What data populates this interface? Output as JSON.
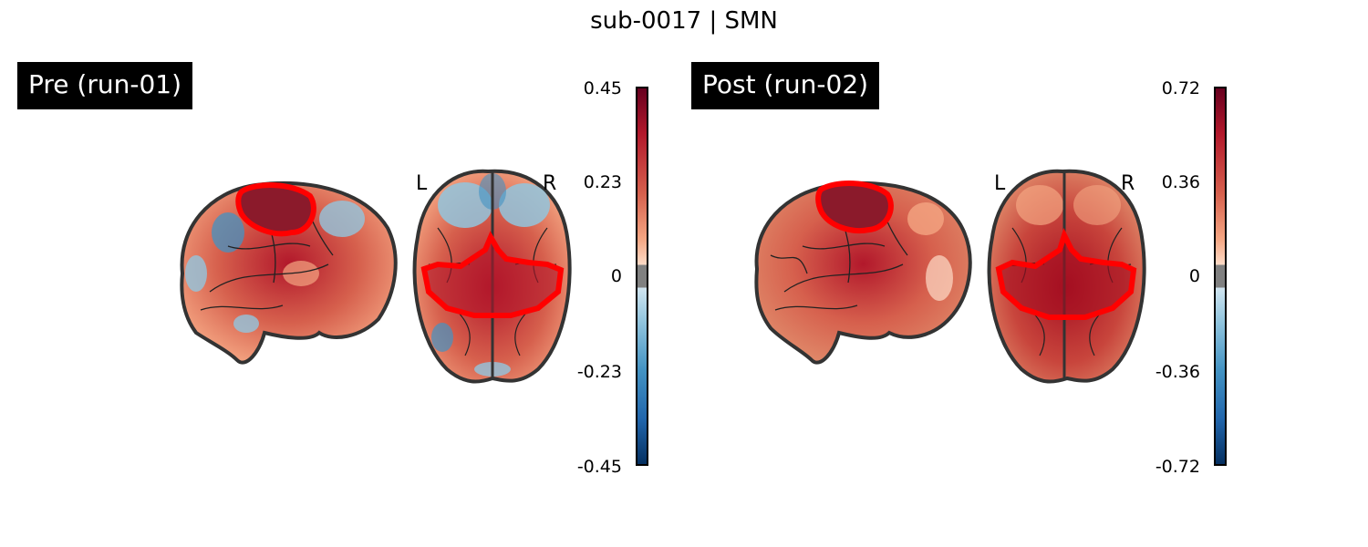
{
  "title": "sub-0017 | SMN",
  "panels": [
    {
      "label": "Pre (run-01)",
      "orientation_left": "L",
      "orientation_right": "R",
      "colorbar_ticks": [
        "0.45",
        "0.23",
        "0",
        "-0.23",
        "-0.45"
      ],
      "vmax": 0.45,
      "vmin": -0.45
    },
    {
      "label": "Post (run-02)",
      "orientation_left": "L",
      "orientation_right": "R",
      "colorbar_ticks": [
        "0.72",
        "0.36",
        "0",
        "-0.36",
        "-0.72"
      ],
      "vmax": 0.72,
      "vmin": -0.72
    }
  ],
  "colors": {
    "positive": "#c0392b",
    "negative": "#2f6fb0",
    "roi_outline": "#ff0000",
    "brain_outline": "#333333",
    "colorbar_zero": "#808080"
  },
  "colormap": "RdBu_r"
}
